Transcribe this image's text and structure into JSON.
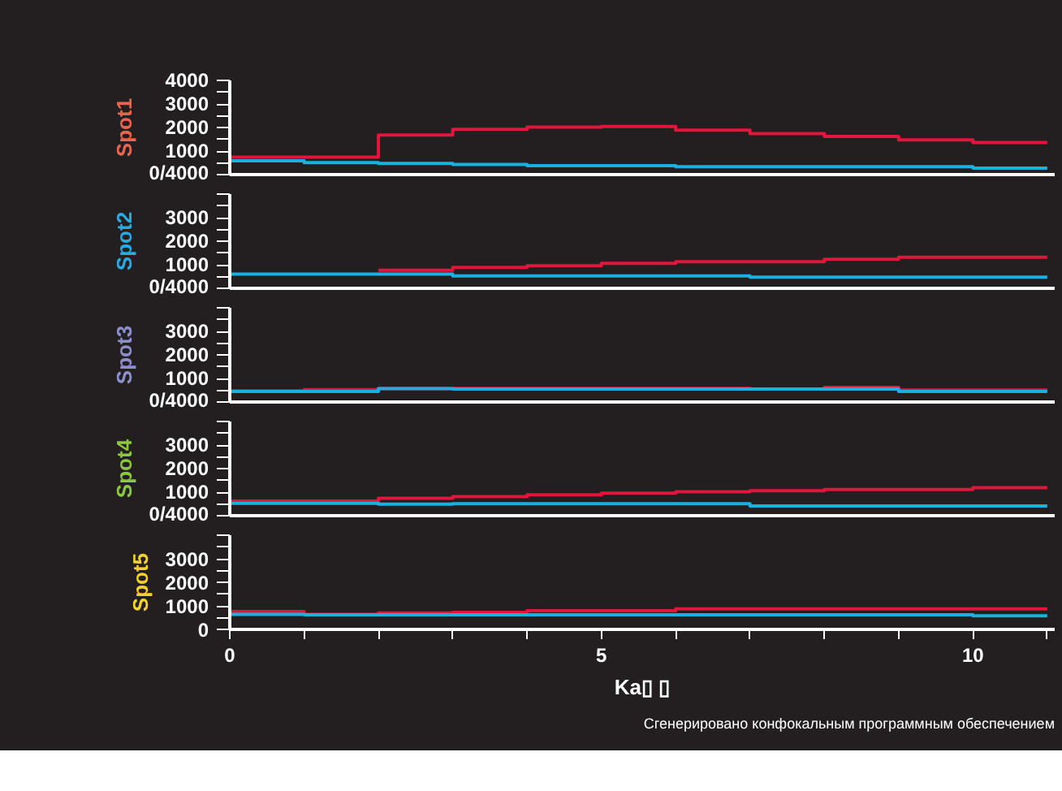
{
  "chart_data": [
    {
      "type": "step",
      "ylabel": "Spot1",
      "x": [
        0,
        1,
        2,
        3,
        4,
        5,
        6,
        7,
        8,
        9,
        10,
        11
      ],
      "xlim": [
        0,
        11.1
      ],
      "ylim": [
        0,
        4000
      ],
      "tick_labels": "y",
      "yticks": [
        {
          "value": 0,
          "label": "0/4000"
        },
        {
          "value": 500,
          "label": null
        },
        1000,
        {
          "value": 1500,
          "label": null
        },
        2000,
        {
          "value": 2500,
          "label": null
        },
        3000,
        {
          "value": 3500,
          "label": null
        },
        4000
      ],
      "series": [
        {
          "color": "#e0163c",
          "values": [
            740,
            740,
            1680,
            1920,
            2020,
            2040,
            1890,
            1740,
            1620,
            1470,
            1360,
            1360
          ]
        },
        {
          "color": "#1ab0e0",
          "values": [
            585,
            510,
            470,
            430,
            380,
            380,
            340,
            340,
            340,
            340,
            280,
            280
          ]
        }
      ]
    },
    {
      "type": "step",
      "ylabel": "Spot2",
      "x": [
        0,
        1,
        2,
        3,
        4,
        5,
        6,
        7,
        8,
        9,
        10,
        11
      ],
      "xlim": [
        0,
        11.1
      ],
      "ylim": [
        0,
        4000
      ],
      "tick_labels": "y",
      "yticks": [
        {
          "value": 0,
          "label": "0/4000"
        },
        {
          "value": 500,
          "label": null
        },
        1000,
        {
          "value": 1500,
          "label": null
        },
        2000,
        {
          "value": 2500,
          "label": null
        },
        3000,
        {
          "value": 3500,
          "label": null
        },
        {
          "value": 4000,
          "label": null
        }
      ],
      "series": [
        {
          "color": "#e0163c",
          "values": [
            null,
            null,
            770,
            890,
            960,
            1060,
            1130,
            1130,
            1230,
            1320,
            1320,
            1320
          ]
        },
        {
          "color": "#1ab0e0",
          "values": [
            600,
            600,
            600,
            530,
            530,
            530,
            530,
            470,
            470,
            470,
            470,
            470
          ]
        }
      ]
    },
    {
      "type": "step",
      "ylabel": "Spot3",
      "x": [
        0,
        1,
        2,
        3,
        4,
        5,
        6,
        7,
        8,
        9,
        10,
        11
      ],
      "xlim": [
        0,
        11.1
      ],
      "ylim": [
        0,
        4000
      ],
      "tick_labels": "y",
      "yticks": [
        {
          "value": 0,
          "label": "0/4000"
        },
        {
          "value": 500,
          "label": null
        },
        1000,
        {
          "value": 1500,
          "label": null
        },
        2000,
        {
          "value": 2500,
          "label": null
        },
        3000,
        {
          "value": 3500,
          "label": null
        },
        {
          "value": 4000,
          "label": null
        }
      ],
      "series": [
        {
          "color": "#e0163c",
          "values": [
            470,
            530,
            570,
            580,
            580,
            580,
            580,
            550,
            620,
            510,
            510,
            510
          ]
        },
        {
          "color": "#1ab0e0",
          "values": [
            450,
            450,
            570,
            550,
            550,
            550,
            550,
            550,
            550,
            450,
            450,
            450
          ]
        }
      ]
    },
    {
      "type": "step",
      "ylabel": "Spot4",
      "x": [
        0,
        1,
        2,
        3,
        4,
        5,
        6,
        7,
        8,
        9,
        10,
        11
      ],
      "xlim": [
        0,
        11.1
      ],
      "ylim": [
        0,
        4000
      ],
      "tick_labels": "y",
      "yticks": [
        {
          "value": 0,
          "label": "0/4000"
        },
        {
          "value": 500,
          "label": null
        },
        1000,
        {
          "value": 1500,
          "label": null
        },
        2000,
        {
          "value": 2500,
          "label": null
        },
        3000,
        {
          "value": 3500,
          "label": null
        },
        {
          "value": 4000,
          "label": null
        }
      ],
      "series": [
        {
          "color": "#e0163c",
          "values": [
            620,
            620,
            740,
            810,
            890,
            960,
            1020,
            1060,
            1110,
            1110,
            1190,
            1190
          ]
        },
        {
          "color": "#1ab0e0",
          "values": [
            530,
            530,
            490,
            510,
            510,
            510,
            510,
            415,
            415,
            415,
            415,
            415
          ]
        }
      ]
    },
    {
      "type": "step",
      "ylabel": "Spot5",
      "xlabel": "Ka▯ ▯",
      "x": [
        0,
        1,
        2,
        3,
        4,
        5,
        6,
        7,
        8,
        9,
        10,
        11
      ],
      "xlim": [
        0,
        11.1
      ],
      "ylim": [
        0,
        4000
      ],
      "xticks": [
        0,
        {
          "value": 1,
          "label": null
        },
        {
          "value": 2,
          "label": null
        },
        {
          "value": 3,
          "label": null
        },
        {
          "value": 4,
          "label": null
        },
        5,
        {
          "value": 6,
          "label": null
        },
        {
          "value": 7,
          "label": null
        },
        {
          "value": 8,
          "label": null
        },
        {
          "value": 9,
          "label": null
        },
        10,
        {
          "value": 11,
          "label": null
        }
      ],
      "yticks": [
        0,
        {
          "value": 500,
          "label": null
        },
        1000,
        {
          "value": 1500,
          "label": null
        },
        2000,
        {
          "value": 2500,
          "label": null
        },
        3000,
        {
          "value": 3500,
          "label": null
        },
        {
          "value": 4000,
          "label": null
        }
      ],
      "annotations": [
        "Сгенерировано конфокальным программным обеспечением"
      ],
      "series": [
        {
          "color": "#e0163c",
          "values": [
            755,
            640,
            700,
            720,
            790,
            790,
            870,
            870,
            870,
            870,
            870,
            870
          ]
        },
        {
          "color": "#1ab0e0",
          "values": [
            640,
            620,
            620,
            620,
            620,
            620,
            620,
            620,
            620,
            620,
            580,
            580
          ]
        }
      ]
    }
  ]
}
